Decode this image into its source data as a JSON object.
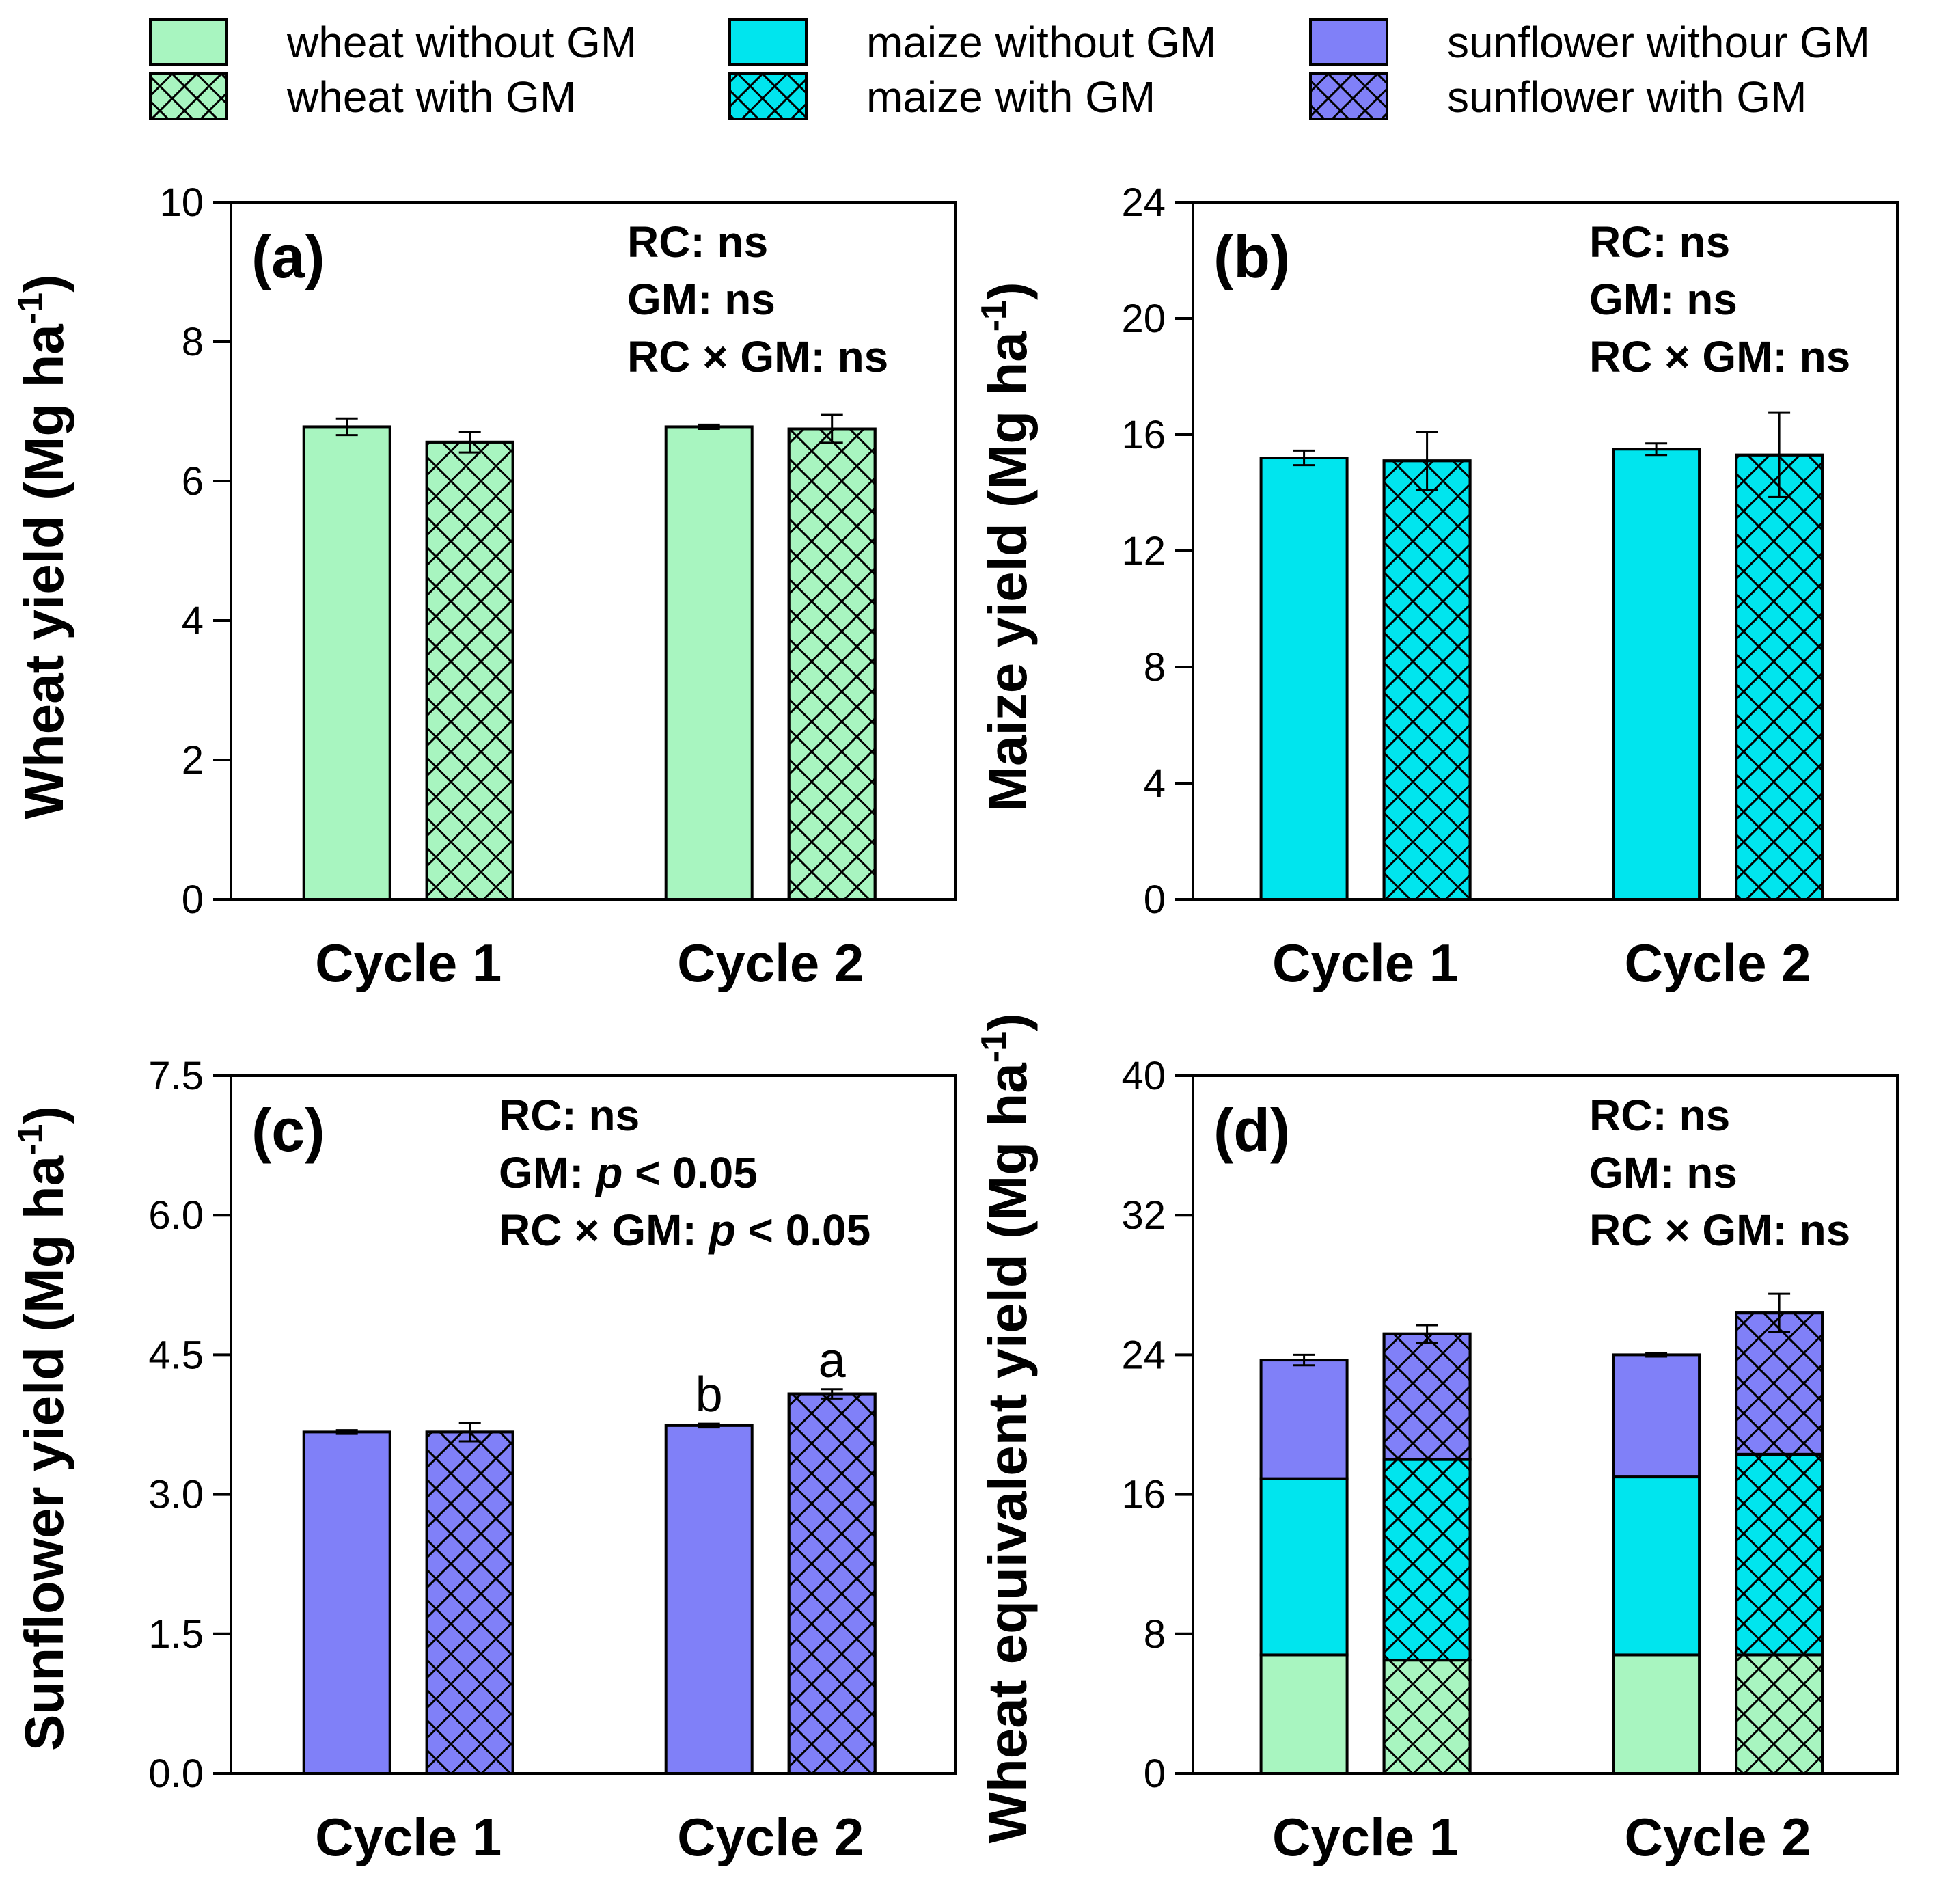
{
  "legend": {
    "items": [
      {
        "label": "wheat without GM",
        "color": "#a8f5c0",
        "hatch": false
      },
      {
        "label": "maize without GM",
        "color": "#00e5ee",
        "hatch": false
      },
      {
        "label": "sunflower withour GM",
        "color": "#8080f8",
        "hatch": false
      },
      {
        "label": "wheat with GM",
        "color": "#a8f5c0",
        "hatch": true
      },
      {
        "label": "maize with GM",
        "color": "#00e5ee",
        "hatch": true
      },
      {
        "label": "sunflower with GM",
        "color": "#8080f8",
        "hatch": true
      }
    ]
  },
  "chart_data": [
    {
      "type": "bar",
      "panel": "(a)",
      "ylabel": "Wheat yield (Mg ha",
      "ylabel_sup": "-1",
      "ylabel_end": ")",
      "categories": [
        "Cycle 1",
        "Cycle 2"
      ],
      "ylim": [
        0,
        10
      ],
      "yticks": [
        "0",
        "2",
        "4",
        "6",
        "8",
        "10"
      ],
      "stats": [
        "RC: ns",
        "GM: ns",
        "RC × GM: ns"
      ],
      "series": [
        {
          "name": "wheat without GM",
          "color": "#a8f5c0",
          "hatch": false,
          "values": [
            6.78,
            6.78
          ],
          "errors": [
            0.12,
            0.03
          ]
        },
        {
          "name": "wheat with GM",
          "color": "#a8f5c0",
          "hatch": true,
          "values": [
            6.56,
            6.75
          ],
          "errors": [
            0.15,
            0.2
          ]
        }
      ]
    },
    {
      "type": "bar",
      "panel": "(b)",
      "ylabel": "Maize yield (Mg ha",
      "ylabel_sup": "-1",
      "ylabel_end": ")",
      "categories": [
        "Cycle 1",
        "Cycle 2"
      ],
      "ylim": [
        0,
        24
      ],
      "yticks": [
        "0",
        "4",
        "8",
        "12",
        "16",
        "20",
        "24"
      ],
      "stats": [
        "RC: ns",
        "GM: ns",
        "RC × GM: ns"
      ],
      "series": [
        {
          "name": "maize without GM",
          "color": "#00e5ee",
          "hatch": false,
          "values": [
            15.2,
            15.5
          ],
          "errors": [
            0.25,
            0.2
          ]
        },
        {
          "name": "maize with GM",
          "color": "#00e5ee",
          "hatch": true,
          "values": [
            15.1,
            15.3
          ],
          "errors": [
            1.0,
            1.45
          ]
        }
      ]
    },
    {
      "type": "bar",
      "panel": "(c)",
      "ylabel": "Sunflower yield (Mg ha",
      "ylabel_sup": "-1",
      "ylabel_end": ")",
      "categories": [
        "Cycle 1",
        "Cycle 2"
      ],
      "ylim": [
        0,
        7.5
      ],
      "yticks": [
        "0.0",
        "1.5",
        "3.0",
        "4.5",
        "6.0",
        "7.5"
      ],
      "stats": [
        "RC: ns",
        "GM: ",
        "RC × GM: "
      ],
      "stats_p": [
        "",
        "p",
        "p"
      ],
      "stats_tail": [
        "",
        " < 0.05",
        " < 0.05"
      ],
      "significance": {
        "Cycle 2": [
          "b",
          "a"
        ]
      },
      "series": [
        {
          "name": "sunflower withour GM",
          "color": "#8080f8",
          "hatch": false,
          "values": [
            3.67,
            3.74
          ],
          "errors": [
            0.02,
            0.02
          ]
        },
        {
          "name": "sunflower with GM",
          "color": "#8080f8",
          "hatch": true,
          "values": [
            3.67,
            4.08
          ],
          "errors": [
            0.1,
            0.05
          ]
        }
      ]
    },
    {
      "type": "bar-stacked",
      "panel": "(d)",
      "ylabel": "Wheat equivalent yield (Mg ha",
      "ylabel_sup": "-1",
      "ylabel_end": ")",
      "categories": [
        "Cycle 1",
        "Cycle 2"
      ],
      "ylim": [
        0,
        40
      ],
      "yticks": [
        "0",
        "8",
        "16",
        "24",
        "32",
        "40"
      ],
      "stats": [
        "RC: ns",
        "GM: ns",
        "RC × GM: ns"
      ],
      "groups": [
        {
          "name": "without GM",
          "hatch": false,
          "stacks": [
            {
              "name": "wheat",
              "color": "#a8f5c0",
              "values": [
                6.8,
                6.8
              ]
            },
            {
              "name": "maize",
              "color": "#00e5ee",
              "values": [
                10.1,
                10.2
              ]
            },
            {
              "name": "sunflower",
              "color": "#8080f8",
              "values": [
                6.8,
                7.0
              ]
            }
          ],
          "totals": [
            23.7,
            24.0
          ],
          "errors": [
            0.3,
            0.1
          ]
        },
        {
          "name": "with GM",
          "hatch": true,
          "stacks": [
            {
              "name": "wheat",
              "color": "#a8f5c0",
              "values": [
                6.5,
                6.8
              ]
            },
            {
              "name": "maize",
              "color": "#00e5ee",
              "values": [
                11.5,
                11.5
              ]
            },
            {
              "name": "sunflower",
              "color": "#8080f8",
              "values": [
                7.2,
                8.1
              ]
            }
          ],
          "totals": [
            25.2,
            26.4
          ],
          "errors": [
            0.5,
            1.1
          ]
        }
      ]
    }
  ]
}
